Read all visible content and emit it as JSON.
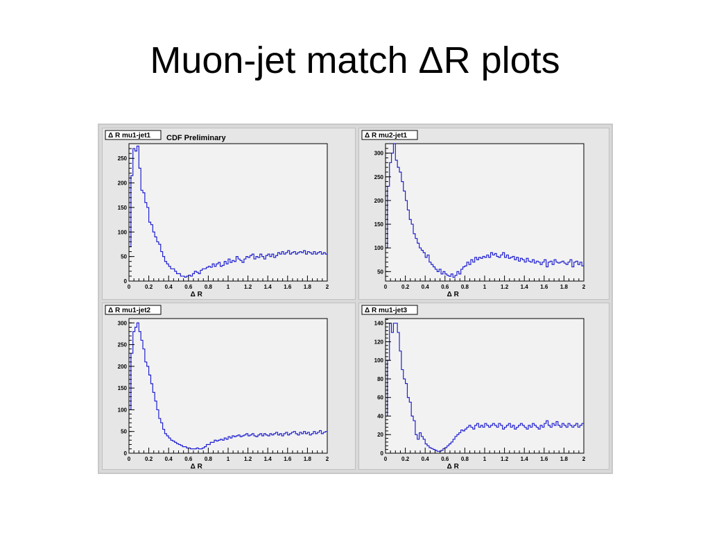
{
  "title": "Muon-jet match ΔR plots",
  "chart_data": [
    {
      "type": "line",
      "name": "Δ R mu1-jet1",
      "annotation": "CDF Preliminary",
      "xlabel": "Δ R",
      "xlim": [
        0,
        2
      ],
      "ylim": [
        0,
        280
      ],
      "x_ticks": [
        "0",
        "0.2",
        "0.4",
        "0.6",
        "0.8",
        "1",
        "1.2",
        "1.4",
        "1.6",
        "1.8",
        "2"
      ],
      "y_ticks": [
        0,
        50,
        100,
        150,
        200,
        250
      ],
      "bin_width": 0.02,
      "values": [
        70,
        215,
        270,
        265,
        275,
        230,
        185,
        180,
        160,
        150,
        120,
        115,
        100,
        90,
        80,
        75,
        60,
        50,
        40,
        35,
        30,
        25,
        25,
        20,
        15,
        15,
        10,
        10,
        8,
        10,
        12,
        10,
        15,
        20,
        18,
        15,
        22,
        25,
        25,
        28,
        30,
        28,
        35,
        30,
        35,
        38,
        30,
        32,
        40,
        35,
        45,
        38,
        42,
        40,
        50,
        45,
        42,
        38,
        45,
        50,
        48,
        52,
        55,
        45,
        50,
        48,
        55,
        50,
        45,
        52,
        55,
        50,
        55,
        48,
        52,
        58,
        55,
        60,
        55,
        58,
        62,
        55,
        58,
        60,
        55,
        58,
        60,
        58,
        62,
        55,
        60,
        58,
        55,
        60,
        55,
        58,
        60,
        55,
        58,
        55
      ]
    },
    {
      "type": "line",
      "name": "Δ R mu2-jet1",
      "xlabel": "Δ R",
      "xlim": [
        0,
        2
      ],
      "ylim": [
        30,
        320
      ],
      "x_ticks": [
        "0",
        "0.2",
        "0.4",
        "0.6",
        "0.8",
        "1",
        "1.2",
        "1.4",
        "1.6",
        "1.8",
        "2"
      ],
      "y_ticks": [
        50,
        100,
        150,
        200,
        250,
        300
      ],
      "bin_width": 0.02,
      "values": [
        100,
        230,
        280,
        300,
        320,
        285,
        270,
        260,
        240,
        220,
        200,
        180,
        160,
        150,
        130,
        120,
        110,
        100,
        95,
        90,
        80,
        85,
        70,
        65,
        60,
        55,
        50,
        55,
        45,
        50,
        45,
        42,
        40,
        45,
        38,
        42,
        50,
        45,
        55,
        60,
        62,
        70,
        65,
        75,
        70,
        80,
        75,
        80,
        78,
        82,
        80,
        85,
        80,
        90,
        85,
        88,
        82,
        80,
        85,
        90,
        80,
        85,
        78,
        80,
        82,
        75,
        80,
        72,
        78,
        75,
        70,
        78,
        72,
        70,
        75,
        68,
        72,
        70,
        65,
        70,
        75,
        60,
        70,
        72,
        65,
        75,
        70,
        68,
        70,
        72,
        68,
        65,
        70,
        75,
        60,
        70,
        72,
        65,
        70,
        62
      ]
    },
    {
      "type": "line",
      "name": "Δ R mu1-jet2",
      "xlabel": "Δ R",
      "xlim": [
        0,
        2
      ],
      "ylim": [
        0,
        310
      ],
      "x_ticks": [
        "0",
        "0.2",
        "0.4",
        "0.6",
        "0.8",
        "1",
        "1.2",
        "1.4",
        "1.6",
        "1.8",
        "2"
      ],
      "y_ticks": [
        0,
        50,
        100,
        150,
        200,
        250,
        300
      ],
      "bin_width": 0.02,
      "values": [
        100,
        230,
        280,
        290,
        300,
        280,
        260,
        240,
        210,
        200,
        180,
        160,
        140,
        120,
        100,
        80,
        70,
        55,
        45,
        40,
        35,
        30,
        28,
        25,
        22,
        20,
        18,
        15,
        15,
        12,
        12,
        10,
        10,
        10,
        12,
        10,
        10,
        12,
        15,
        20,
        20,
        25,
        25,
        30,
        28,
        30,
        32,
        30,
        35,
        32,
        38,
        35,
        40,
        38,
        40,
        42,
        38,
        40,
        42,
        45,
        40,
        42,
        45,
        40,
        38,
        42,
        45,
        40,
        45,
        42,
        40,
        45,
        42,
        45,
        48,
        42,
        45,
        40,
        45,
        48,
        42,
        45,
        48,
        50,
        45,
        42,
        48,
        45,
        50,
        45,
        48,
        42,
        45,
        50,
        45,
        48,
        52,
        45,
        48,
        50
      ]
    },
    {
      "type": "line",
      "name": "Δ R mu1-jet3",
      "xlabel": "Δ R",
      "xlim": [
        0,
        2
      ],
      "ylim": [
        0,
        145
      ],
      "x_ticks": [
        "0",
        "0.2",
        "0.4",
        "0.6",
        "0.8",
        "1",
        "1.2",
        "1.4",
        "1.6",
        "1.8",
        "2"
      ],
      "y_ticks": [
        0,
        20,
        40,
        60,
        80,
        100,
        120,
        140
      ],
      "bin_width": 0.02,
      "values": [
        40,
        100,
        140,
        130,
        140,
        140,
        130,
        110,
        90,
        80,
        75,
        60,
        55,
        40,
        35,
        20,
        15,
        22,
        18,
        15,
        10,
        8,
        6,
        5,
        4,
        3,
        2,
        2,
        3,
        5,
        6,
        8,
        10,
        12,
        15,
        18,
        20,
        22,
        25,
        24,
        26,
        28,
        30,
        28,
        26,
        30,
        32,
        28,
        30,
        28,
        32,
        30,
        28,
        30,
        32,
        30,
        28,
        32,
        30,
        26,
        28,
        30,
        32,
        28,
        30,
        26,
        28,
        30,
        32,
        30,
        28,
        26,
        30,
        28,
        32,
        30,
        28,
        26,
        30,
        28,
        32,
        35,
        30,
        28,
        32,
        30,
        34,
        30,
        28,
        32,
        30,
        28,
        32,
        30,
        28,
        30,
        32,
        28,
        30,
        32
      ]
    }
  ]
}
